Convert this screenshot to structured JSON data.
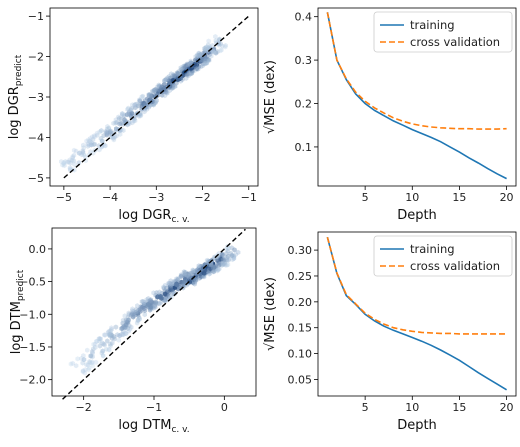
{
  "chart_data": [
    {
      "panel": "top-left",
      "type": "scatter",
      "style": "hexbin density",
      "colormap": "Blues",
      "xlabel": {
        "base": "log DGR",
        "sub": "c. v."
      },
      "ylabel": {
        "base": "log DGR",
        "sub": "predict"
      },
      "xlim": [
        -5.3,
        -0.8
      ],
      "ylim": [
        -5.2,
        -0.8
      ],
      "xticks": [
        -5,
        -4,
        -3,
        -2,
        -1
      ],
      "yticks": [
        -5,
        -4,
        -3,
        -2,
        -1
      ],
      "reference_line": {
        "style": "dashed",
        "color": "#000000",
        "x": [
          -5,
          -1
        ],
        "y": [
          -5,
          -1
        ]
      },
      "density_ridge": [
        {
          "x": -4.8,
          "y": -4.6,
          "w": 0.15
        },
        {
          "x": -4.5,
          "y": -4.3,
          "w": 0.2
        },
        {
          "x": -4.2,
          "y": -4.05,
          "w": 0.3
        },
        {
          "x": -3.9,
          "y": -3.8,
          "w": 0.4
        },
        {
          "x": -3.6,
          "y": -3.5,
          "w": 0.55
        },
        {
          "x": -3.3,
          "y": -3.2,
          "w": 0.65
        },
        {
          "x": -3.0,
          "y": -2.95,
          "w": 0.8
        },
        {
          "x": -2.7,
          "y": -2.65,
          "w": 0.9
        },
        {
          "x": -2.4,
          "y": -2.4,
          "w": 1.0
        },
        {
          "x": -2.1,
          "y": -2.15,
          "w": 1.0
        },
        {
          "x": -1.9,
          "y": -1.95,
          "w": 0.7
        },
        {
          "x": -1.75,
          "y": -1.75,
          "w": 0.25
        }
      ]
    },
    {
      "panel": "top-right",
      "type": "line",
      "xlabel": "Depth",
      "ylabel": "√MSE (dex)",
      "xlim": [
        0,
        21
      ],
      "ylim": [
        0.01,
        0.42
      ],
      "xticks": [
        5,
        10,
        15,
        20
      ],
      "yticks": [
        0.1,
        0.2,
        0.3,
        0.4
      ],
      "legend_position": "top-right",
      "x": [
        1,
        2,
        3,
        4,
        5,
        6,
        7,
        8,
        9,
        10,
        11,
        12,
        13,
        14,
        15,
        16,
        17,
        18,
        19,
        20
      ],
      "series": [
        {
          "name": "training",
          "color": "#1f77b4",
          "dash": "solid",
          "values": [
            0.41,
            0.3,
            0.255,
            0.222,
            0.2,
            0.184,
            0.172,
            0.16,
            0.15,
            0.14,
            0.131,
            0.122,
            0.112,
            0.1,
            0.088,
            0.075,
            0.063,
            0.05,
            0.038,
            0.027
          ]
        },
        {
          "name": "cross validation",
          "color": "#ff7f0e",
          "dash": "dashed",
          "values": [
            0.41,
            0.3,
            0.257,
            0.226,
            0.205,
            0.19,
            0.178,
            0.167,
            0.159,
            0.153,
            0.149,
            0.146,
            0.144,
            0.143,
            0.142,
            0.142,
            0.141,
            0.141,
            0.141,
            0.142
          ]
        }
      ]
    },
    {
      "panel": "bottom-left",
      "type": "scatter",
      "style": "hexbin density",
      "colormap": "Blues",
      "xlabel": {
        "base": "log DTM",
        "sub": "c. v."
      },
      "ylabel": {
        "base": "log DTM",
        "sub": "predict"
      },
      "xlim": [
        -2.45,
        0.45
      ],
      "ylim": [
        -2.25,
        0.32
      ],
      "xticks": [
        -2,
        -1,
        0
      ],
      "yticks": [
        -2.0,
        -1.5,
        -1.0,
        -0.5,
        0.0
      ],
      "xtick_labels": [
        "−2",
        "−1",
        "0"
      ],
      "ytick_labels": [
        "−2.0",
        "−1.5",
        "−1.0",
        "−0.5",
        "0.0"
      ],
      "reference_line": {
        "style": "dashed",
        "color": "#000000",
        "x": [
          -2.3,
          0.3
        ],
        "y": [
          -2.3,
          0.3
        ]
      },
      "density_ridge": [
        {
          "x": -2.0,
          "y": -1.75,
          "w": 0.15
        },
        {
          "x": -1.8,
          "y": -1.55,
          "w": 0.25
        },
        {
          "x": -1.6,
          "y": -1.35,
          "w": 0.35
        },
        {
          "x": -1.4,
          "y": -1.15,
          "w": 0.45
        },
        {
          "x": -1.2,
          "y": -0.95,
          "w": 0.6
        },
        {
          "x": -1.0,
          "y": -0.8,
          "w": 0.7
        },
        {
          "x": -0.8,
          "y": -0.65,
          "w": 0.8
        },
        {
          "x": -0.6,
          "y": -0.5,
          "w": 0.9
        },
        {
          "x": -0.4,
          "y": -0.4,
          "w": 1.0
        },
        {
          "x": -0.25,
          "y": -0.3,
          "w": 1.0
        },
        {
          "x": -0.1,
          "y": -0.2,
          "w": 0.8
        },
        {
          "x": 0.05,
          "y": -0.1,
          "w": 0.4
        }
      ]
    },
    {
      "panel": "bottom-right",
      "type": "line",
      "xlabel": "Depth",
      "ylabel": "√MSE (dex)",
      "xlim": [
        0,
        21
      ],
      "ylim": [
        0.018,
        0.335
      ],
      "xticks": [
        5,
        10,
        15,
        20
      ],
      "yticks": [
        0.05,
        0.1,
        0.15,
        0.2,
        0.25,
        0.3
      ],
      "legend_position": "top-right",
      "x": [
        1,
        2,
        3,
        4,
        5,
        6,
        7,
        8,
        9,
        10,
        11,
        12,
        13,
        14,
        15,
        16,
        17,
        18,
        19,
        20
      ],
      "series": [
        {
          "name": "training",
          "color": "#1f77b4",
          "dash": "solid",
          "values": [
            0.325,
            0.255,
            0.212,
            0.195,
            0.176,
            0.163,
            0.153,
            0.145,
            0.138,
            0.131,
            0.124,
            0.116,
            0.107,
            0.097,
            0.087,
            0.075,
            0.063,
            0.052,
            0.041,
            0.03
          ]
        },
        {
          "name": "cross validation",
          "color": "#ff7f0e",
          "dash": "dashed",
          "values": [
            0.325,
            0.256,
            0.214,
            0.196,
            0.178,
            0.166,
            0.157,
            0.15,
            0.146,
            0.143,
            0.141,
            0.14,
            0.139,
            0.139,
            0.138,
            0.138,
            0.138,
            0.138,
            0.138,
            0.138
          ]
        }
      ]
    }
  ]
}
